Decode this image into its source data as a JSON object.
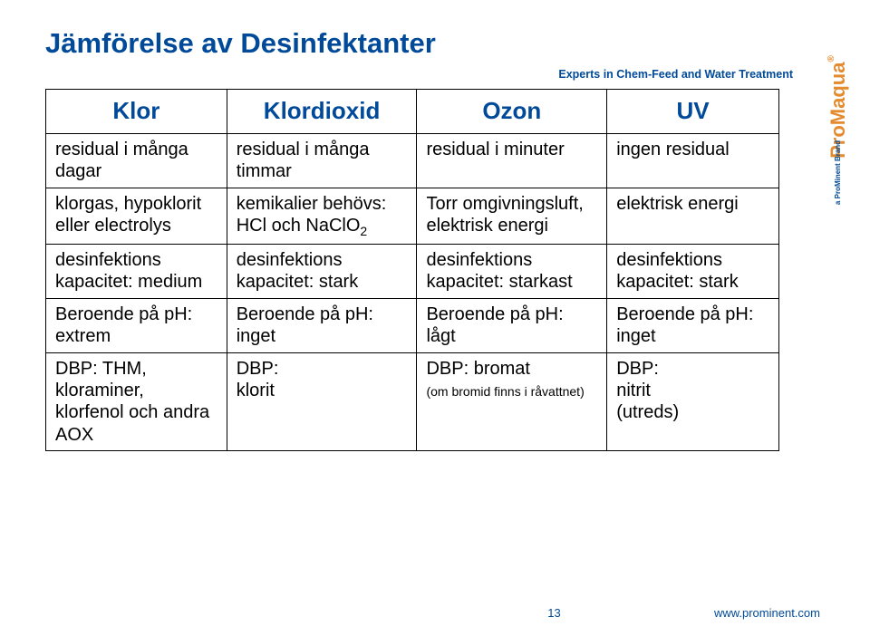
{
  "title": "Jämförelse av Desinfektanter",
  "tagline": "Experts in Chem-Feed and Water Treatment",
  "brand": {
    "name": "ProMaqua",
    "sub": "a ProMinent Brand"
  },
  "headers": [
    "Klor",
    "Klordioxid",
    "Ozon",
    "UV"
  ],
  "rows": [
    {
      "c1": "residual i många dagar",
      "c2": "residual i många timmar",
      "c3": "residual i minuter",
      "c4": "ingen residual"
    },
    {
      "c1": "klorgas, hypoklorit eller electrolys",
      "c2_pre": "kemikalier behövs: HCl och NaClO",
      "c2_sub": "2",
      "c3": "Torr omgivningsluft, elektrisk energi",
      "c4": "elektrisk energi"
    },
    {
      "c1": "desinfektions kapacitet: medium",
      "c2": "desinfektions kapacitet: stark",
      "c3": "desinfektions kapacitet: starkast",
      "c4": "desinfektions kapacitet: stark"
    },
    {
      "c1": "Beroende på pH:\nextrem",
      "c2": "Beroende på pH:\ninget",
      "c3": "Beroende på pH:\nlågt",
      "c4": "Beroende på pH:\ninget"
    },
    {
      "c1": "DBP: THM, kloraminer, klorfenol och andra AOX",
      "c2": "DBP:\nklorit",
      "c3_main": "DBP: bromat",
      "c3_note": "(om bromid finns i råvattnet)",
      "c4": "DBP:\nnitrit\n(utreds)"
    }
  ],
  "footer": {
    "page": "13",
    "url": "www.prominent.com"
  }
}
